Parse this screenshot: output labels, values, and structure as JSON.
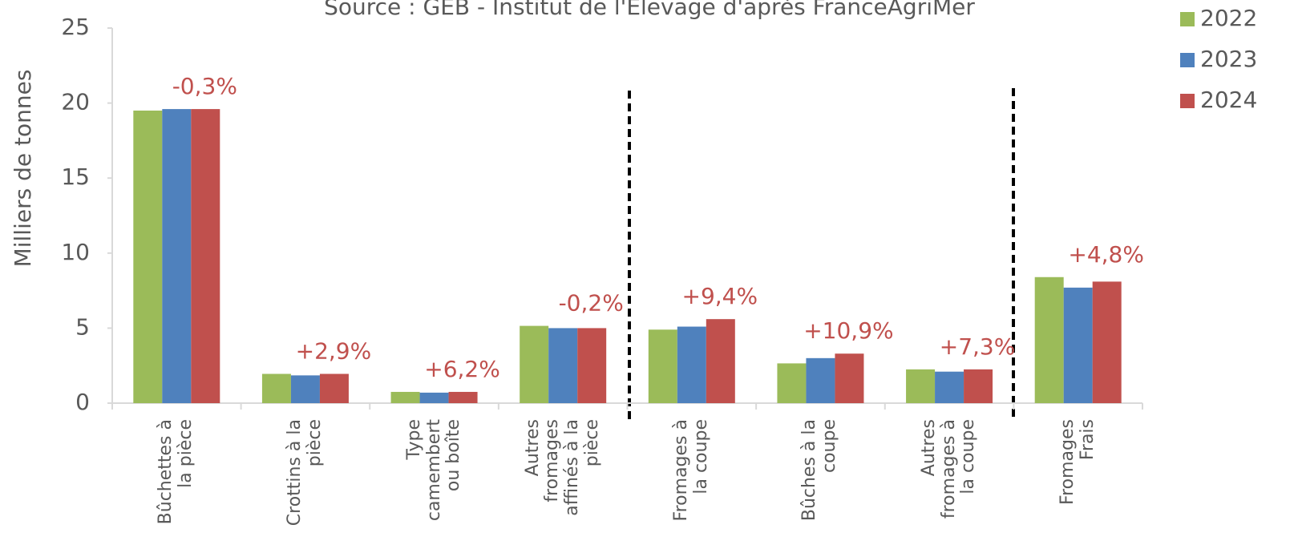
{
  "chart_data": {
    "type": "bar",
    "subtitle": "Source : GEB - Institut de l'Elevage d'après FranceAgriMer",
    "y_label": "Milliers de tonnes",
    "categories": [
      "Bûchettes à la pièce",
      "Crottins à la pièce",
      "Type camembert ou boîte",
      "Autres fromages affinés à la pièce",
      "Fromages à la coupe",
      "Bûches à la coupe",
      "Autres fromages à la coupe",
      "Fromages Frais"
    ],
    "series": [
      {
        "name": "2022",
        "color": "#9bbb59",
        "values": [
          19.5,
          1.95,
          0.75,
          5.15,
          4.9,
          2.65,
          2.25,
          8.4
        ]
      },
      {
        "name": "2023",
        "color": "#4f81bd",
        "values": [
          19.6,
          1.85,
          0.7,
          5.0,
          5.1,
          3.0,
          2.1,
          7.7
        ]
      },
      {
        "name": "2024",
        "color": "#c0504d",
        "values": [
          19.6,
          1.95,
          0.75,
          5.0,
          5.6,
          3.3,
          2.25,
          8.1
        ]
      }
    ],
    "annotations": [
      "-0,3%",
      "+2,9%",
      "+6,2%",
      "-0,2%",
      "+9,4%",
      "+10,9%",
      "+7,3%",
      "+4,8%"
    ],
    "annotation_color": "#c0504d",
    "ylim": [
      0,
      25
    ],
    "yticks": [
      0,
      5,
      10,
      15,
      20,
      25
    ],
    "legend": "upper right",
    "grid": false
  }
}
